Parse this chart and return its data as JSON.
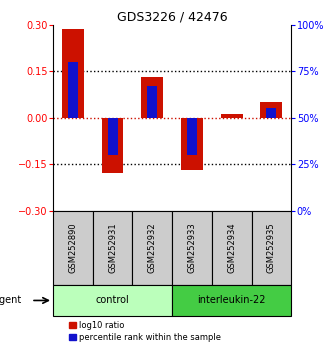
{
  "title": "GDS3226 / 42476",
  "samples": [
    "GSM252890",
    "GSM252931",
    "GSM252932",
    "GSM252933",
    "GSM252934",
    "GSM252935"
  ],
  "groups": [
    {
      "name": "control",
      "color": "#bbffbb",
      "indices": [
        0,
        1,
        2
      ]
    },
    {
      "name": "interleukin-22",
      "color": "#44cc44",
      "indices": [
        3,
        4,
        5
      ]
    }
  ],
  "log10_ratio": [
    0.285,
    -0.18,
    0.13,
    -0.17,
    0.012,
    0.05
  ],
  "percentile_rank": [
    80,
    30,
    67,
    30,
    50,
    55
  ],
  "bar_color_red": "#cc1100",
  "bar_color_blue": "#1111cc",
  "ylim_left": [
    -0.3,
    0.3
  ],
  "ylim_right": [
    0,
    100
  ],
  "yticks_left": [
    -0.3,
    -0.15,
    0,
    0.15,
    0.3
  ],
  "yticks_right": [
    0,
    25,
    50,
    75,
    100
  ],
  "hline_positions": [
    -0.15,
    0,
    0.15
  ],
  "legend_labels": [
    "log10 ratio",
    "percentile rank within the sample"
  ],
  "agent_label": "agent"
}
